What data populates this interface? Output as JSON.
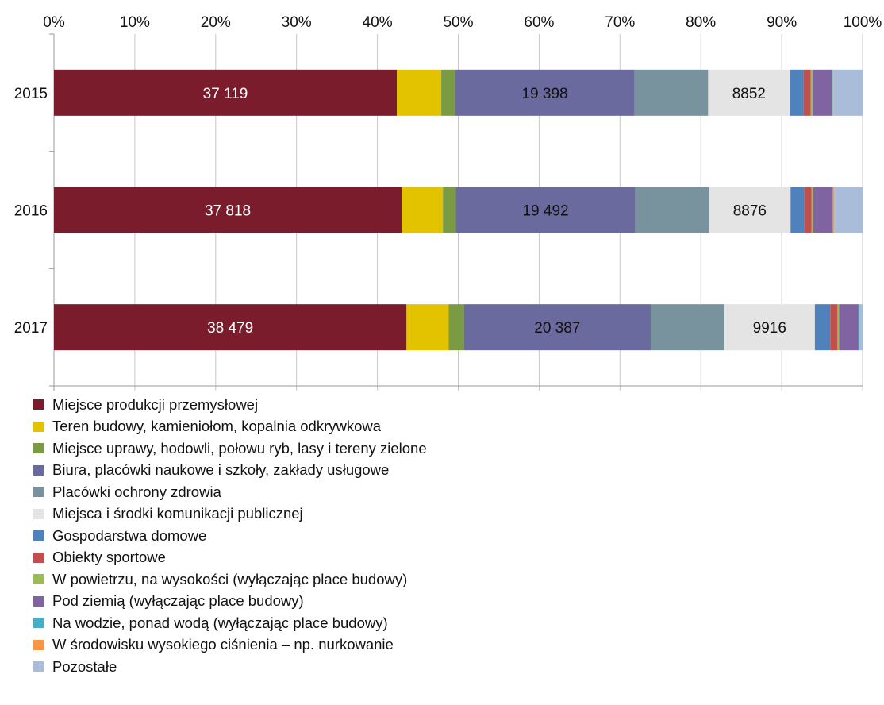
{
  "chart_data": {
    "type": "bar",
    "orientation": "horizontal",
    "stacked": "percent",
    "categories": [
      "2015",
      "2016",
      "2017"
    ],
    "xlim": [
      0,
      100
    ],
    "x_ticks": [
      "0%",
      "10%",
      "20%",
      "30%",
      "40%",
      "50%",
      "60%",
      "70%",
      "80%",
      "90%",
      "100%"
    ],
    "x_tick_position": "top",
    "grid": true,
    "legend_position": "bottom",
    "series": [
      {
        "name": "Miejsce produkcji przemysłowej",
        "color": "#7b1c2c",
        "values": [
          42.4,
          43.0,
          43.6
        ],
        "labels": [
          "37 119",
          "37 818",
          "38 479"
        ],
        "label_color": "#ffffff"
      },
      {
        "name": "Teren budowy, kamieniołom, kopalnia odkrywkowa",
        "color": "#e3c200",
        "values": [
          5.5,
          5.1,
          5.2
        ],
        "labels": [
          "",
          "",
          ""
        ]
      },
      {
        "name": "Miejsce uprawy, hodowli, połowu ryb, lasy i tereny zielone",
        "color": "#7a9a44",
        "values": [
          1.7,
          1.6,
          1.9
        ],
        "labels": [
          "",
          "",
          ""
        ]
      },
      {
        "name": "Biura, placówki naukowe i szkoły, zakłady usługowe",
        "color": "#6b6a9e",
        "values": [
          22.2,
          22.2,
          23.1
        ],
        "labels": [
          "19 398",
          "19 492",
          "20 387"
        ],
        "label_color": "#111111"
      },
      {
        "name": "Placówki ochrony zdrowia",
        "color": "#78939e",
        "values": [
          9.1,
          9.1,
          9.1
        ],
        "labels": [
          "",
          "",
          ""
        ]
      },
      {
        "name": "Miejsca i środki komunikacji publicznej",
        "color": "#e4e4e4",
        "values": [
          10.1,
          10.1,
          11.2
        ],
        "labels": [
          "8852",
          "8876",
          "9916"
        ],
        "label_color": "#111111"
      },
      {
        "name": "Gospodarstwa domowe",
        "color": "#4f81bd",
        "values": [
          1.7,
          1.7,
          1.9
        ],
        "labels": [
          "",
          "",
          ""
        ]
      },
      {
        "name": "Obiekty sportowe",
        "color": "#c0504d",
        "values": [
          0.9,
          0.9,
          0.9
        ],
        "labels": [
          "",
          "",
          ""
        ]
      },
      {
        "name": "W powietrzu, na wysokości (wyłączając place budowy)",
        "color": "#9bbb59",
        "values": [
          0.2,
          0.2,
          0.2
        ],
        "labels": [
          "",
          "",
          ""
        ]
      },
      {
        "name": "Pod ziemią (wyłączając place budowy)",
        "color": "#8064a2",
        "values": [
          2.4,
          2.4,
          2.4
        ],
        "labels": [
          "",
          "",
          ""
        ]
      },
      {
        "name": "Na wodzie, ponad wodą (wyłączając place budowy)",
        "color": "#4bacc6",
        "values": [
          0.1,
          0.1,
          0.1
        ],
        "labels": [
          "",
          "",
          ""
        ]
      },
      {
        "name": "W środowisku wysokiego ciśnienia – np. nurkowanie",
        "color": "#f79646",
        "values": [
          0.1,
          0.1,
          0.0
        ],
        "labels": [
          "",
          "",
          ""
        ]
      },
      {
        "name": "Pozostałe",
        "color": "#a9bcd9",
        "values": [
          3.6,
          3.5,
          0.4
        ],
        "labels": [
          "",
          "",
          ""
        ]
      }
    ]
  }
}
